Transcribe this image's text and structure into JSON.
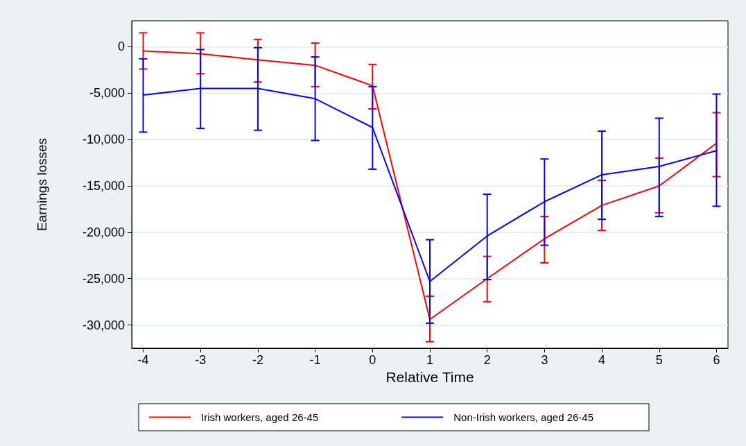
{
  "chart_data": {
    "type": "line",
    "xlabel": "Relative Time",
    "ylabel": "Earnings losses",
    "x": [
      -4,
      -3,
      -2,
      -1,
      0,
      1,
      2,
      3,
      4,
      5,
      6
    ],
    "xlim": [
      -4.2,
      6.2
    ],
    "xticks": [
      -4,
      -3,
      -2,
      -1,
      0,
      1,
      2,
      3,
      4,
      5,
      6
    ],
    "ylim": [
      -32500,
      2800
    ],
    "yticks": [
      {
        "value": 0,
        "label": "0"
      },
      {
        "value": -5000,
        "label": "-5,000"
      },
      {
        "value": -10000,
        "label": "-10,000"
      },
      {
        "value": -15000,
        "label": "-15,000"
      },
      {
        "value": -20000,
        "label": "-20,000"
      },
      {
        "value": -25000,
        "label": "-25,000"
      },
      {
        "value": -30000,
        "label": "-30,000"
      }
    ],
    "grid": "y",
    "legend": "bottom",
    "marker": "none",
    "line_style": "solid",
    "series": [
      {
        "name": "Irish workers, aged 26-45",
        "color": "#ff0000",
        "values": [
          -450,
          -750,
          -1400,
          -2000,
          -4200,
          -29400,
          -25000,
          -20700,
          -17100,
          -15000,
          -10400
        ],
        "errors": [
          [
            -2400,
            1500
          ],
          [
            -2900,
            1500
          ],
          [
            -3800,
            800
          ],
          [
            -4300,
            400
          ],
          [
            -6700,
            -1900
          ],
          [
            -31800,
            -26900
          ],
          [
            -27500,
            -22600
          ],
          [
            -23300,
            -18300
          ],
          [
            -19800,
            -14400
          ],
          [
            -17900,
            -12000
          ],
          [
            -14000,
            -7100
          ]
        ]
      },
      {
        "name": "Non-Irish workers, aged 26-45",
        "color": "#0000ff",
        "values": [
          -5200,
          -4500,
          -4500,
          -5600,
          -8700,
          -25300,
          -20400,
          -16700,
          -13800,
          -12900,
          -11200
        ],
        "errors": [
          [
            -9200,
            -1300
          ],
          [
            -8800,
            -300
          ],
          [
            -9000,
            -100
          ],
          [
            -10100,
            -1100
          ],
          [
            -13200,
            -4300
          ],
          [
            -29800,
            -20800
          ],
          [
            -25100,
            -15900
          ],
          [
            -21400,
            -12100
          ],
          [
            -18600,
            -9100
          ],
          [
            -18300,
            -7700
          ],
          [
            -17200,
            -5100
          ]
        ]
      }
    ]
  }
}
